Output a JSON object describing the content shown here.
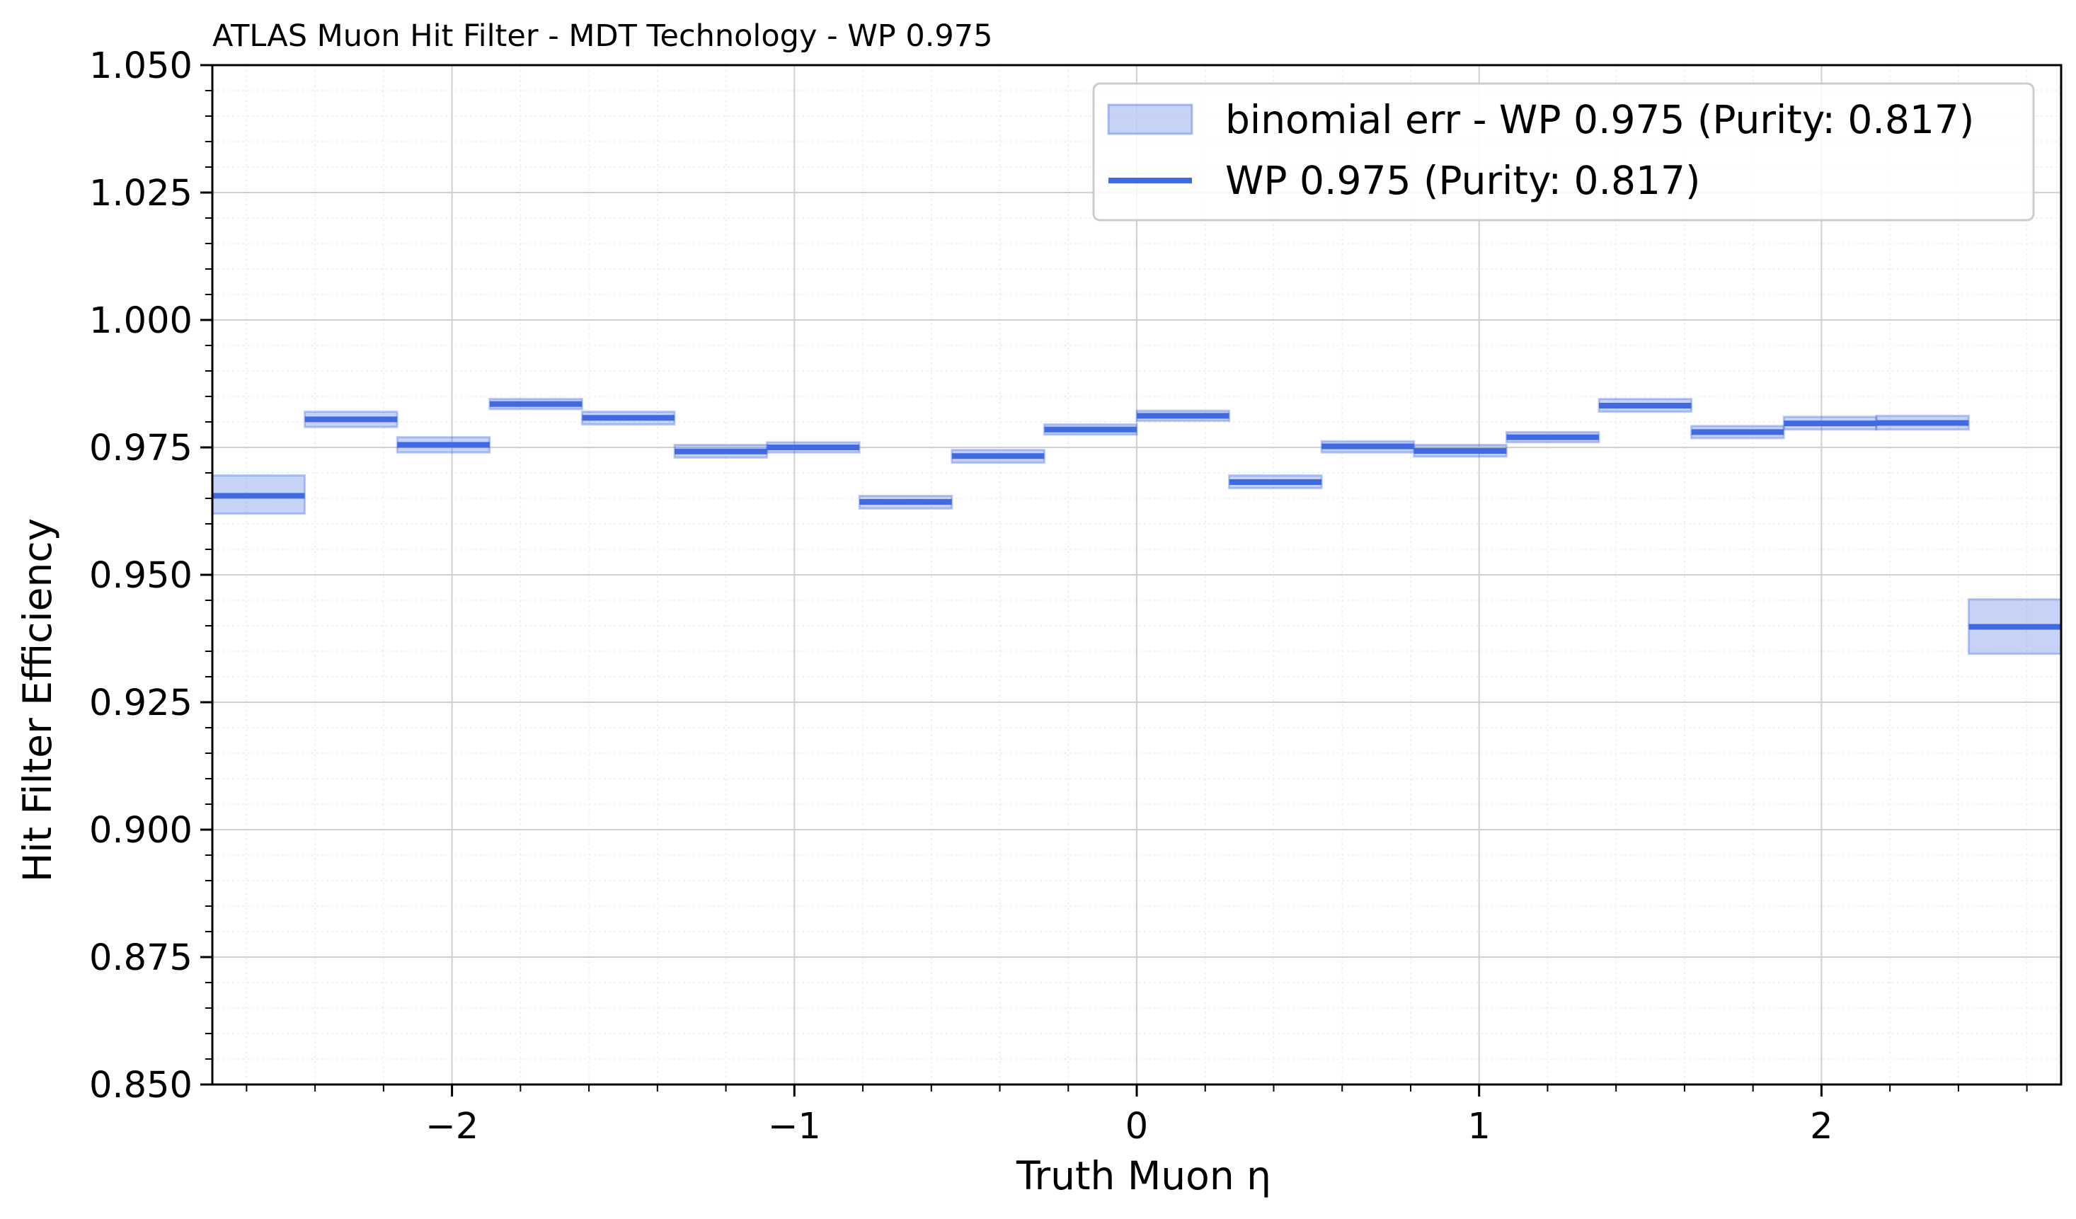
{
  "chart_data": {
    "type": "step",
    "title": "ATLAS Muon Hit Filter - MDT Technology - WP 0.975",
    "xlabel": "Truth Muon η",
    "ylabel": "Hit Filter Efficiency",
    "xlim": [
      -2.7,
      2.7
    ],
    "ylim": [
      0.85,
      1.05
    ],
    "x_ticks": [
      -2,
      -1,
      0,
      1,
      2
    ],
    "x_tick_labels": [
      "−2",
      "−1",
      "0",
      "1",
      "2"
    ],
    "y_ticks": [
      0.85,
      0.875,
      0.9,
      0.925,
      0.95,
      0.975,
      1.0,
      1.025,
      1.05
    ],
    "y_tick_labels": [
      "0.850",
      "0.875",
      "0.900",
      "0.925",
      "0.950",
      "0.975",
      "1.000",
      "1.025",
      "1.050"
    ],
    "grid": true,
    "minor_grid": true,
    "legend_position": "top-right",
    "colors": {
      "line": "#4169e1",
      "band": "#4169e1"
    },
    "series": [
      {
        "name": "WP 0.975 (Purity: 0.817)",
        "bin_edges": [
          -2.7,
          -2.43,
          -2.16,
          -1.89,
          -1.62,
          -1.35,
          -1.08,
          -0.81,
          -0.54,
          -0.27,
          0.0,
          0.27,
          0.54,
          0.81,
          1.08,
          1.35,
          1.62,
          1.89,
          2.16,
          2.43,
          2.7
        ],
        "values": [
          0.9655,
          0.9805,
          0.9755,
          0.9835,
          0.9808,
          0.9742,
          0.975,
          0.9643,
          0.9733,
          0.9785,
          0.9812,
          0.9682,
          0.9752,
          0.9743,
          0.977,
          0.9832,
          0.978,
          0.9797,
          0.9798,
          0.9398
        ],
        "err_low": [
          0.962,
          0.979,
          0.974,
          0.9825,
          0.9795,
          0.973,
          0.974,
          0.963,
          0.972,
          0.9775,
          0.9802,
          0.967,
          0.974,
          0.9732,
          0.976,
          0.982,
          0.9768,
          0.9785,
          0.9785,
          0.9345
        ],
        "err_high": [
          0.9695,
          0.982,
          0.977,
          0.9845,
          0.982,
          0.9755,
          0.976,
          0.9655,
          0.9745,
          0.9795,
          0.9822,
          0.9695,
          0.9762,
          0.9755,
          0.978,
          0.9845,
          0.9792,
          0.981,
          0.9812,
          0.9452
        ]
      }
    ],
    "legend": [
      {
        "kind": "band",
        "label": "binomial err - WP 0.975 (Purity: 0.817)"
      },
      {
        "kind": "line",
        "label": "WP 0.975 (Purity: 0.817)"
      }
    ]
  }
}
